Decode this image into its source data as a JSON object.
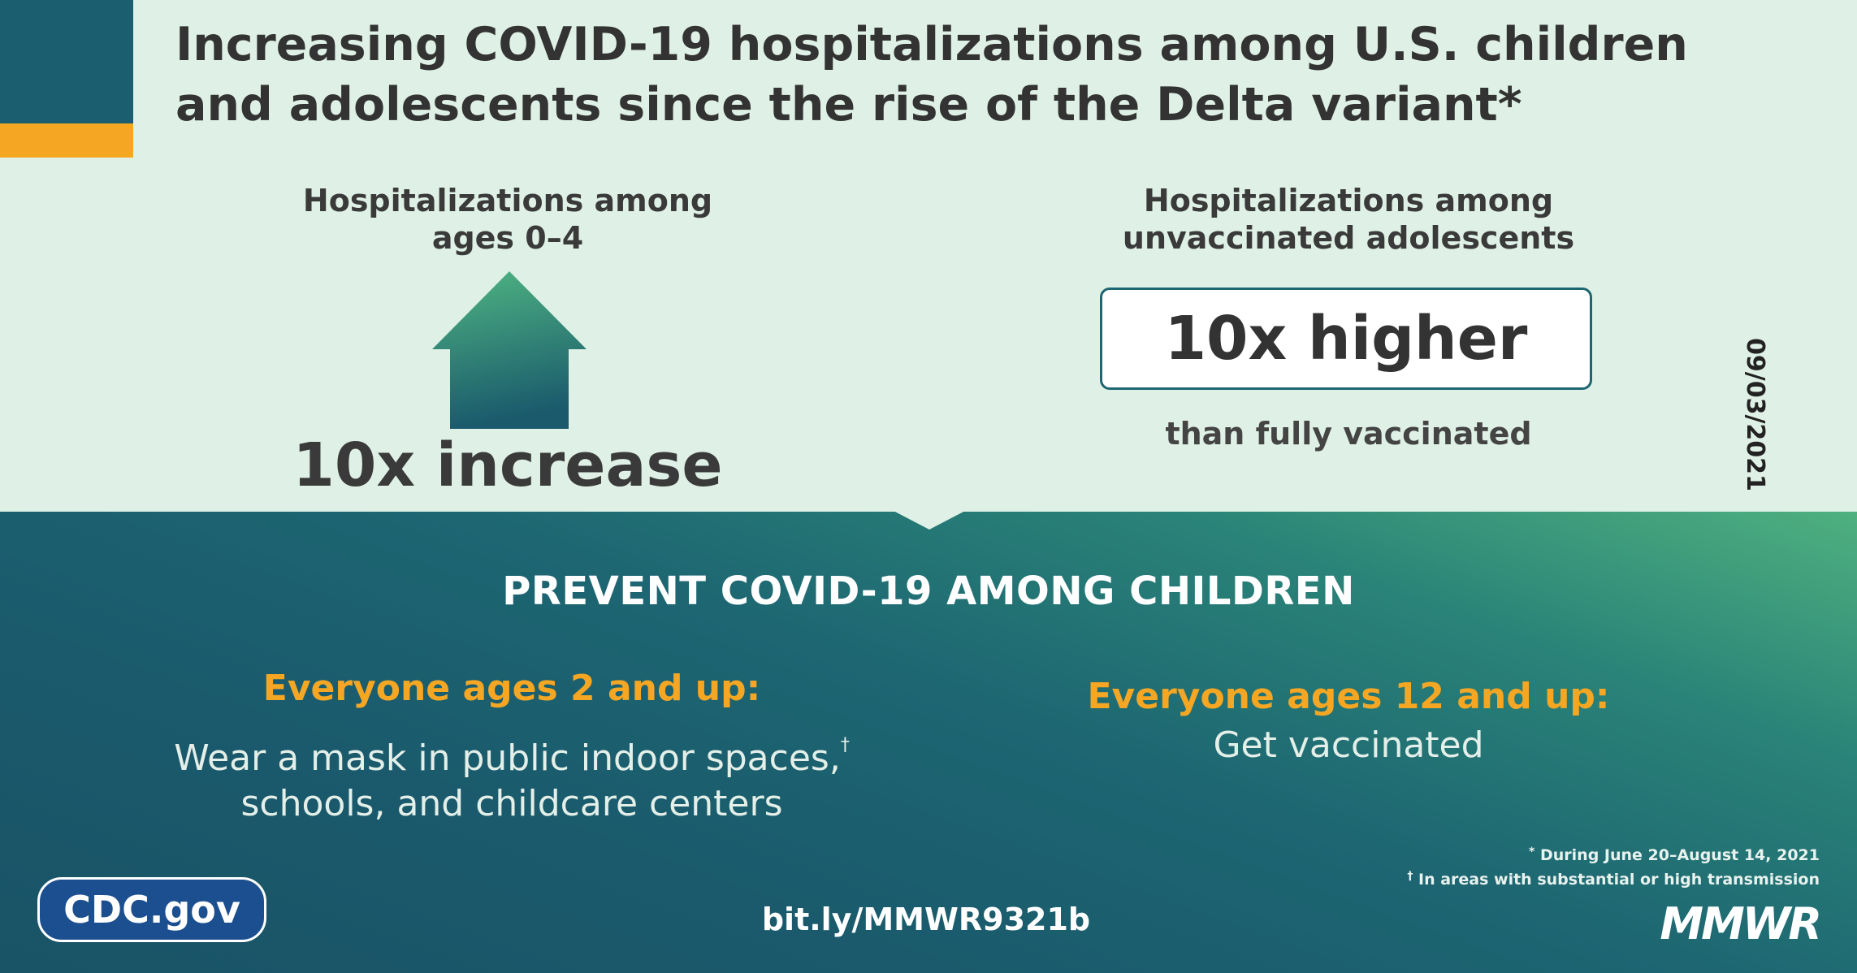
{
  "title": "Increasing COVID-19 hospitalizations among U.S. children and adolescents since the rise of the Delta variant*",
  "left_panel": {
    "heading_line1": "Hospitalizations among",
    "heading_line2": "ages 0–4",
    "stat": "10x increase",
    "arrow_icon": "up-arrow-icon"
  },
  "right_panel": {
    "heading_line1": "Hospitalizations among",
    "heading_line2": "unvaccinated adolescents",
    "stat": "10x higher",
    "subtext": "than fully vaccinated"
  },
  "date": "09/03/2021",
  "prevention": {
    "heading": "PREVENT COVID-19 AMONG CHILDREN",
    "left": {
      "heading": "Everyone ages 2 and up:",
      "line1": "Wear a mask in public indoor spaces,",
      "dagger": "†",
      "line2": "schools, and childcare centers"
    },
    "right": {
      "heading": "Everyone ages 12 and up:",
      "line1": "Get vaccinated"
    }
  },
  "footnotes": {
    "note1_mark": "*",
    "note1_text": "During June 20–August 14, 2021",
    "note2_mark": "†",
    "note2_text": "In areas with substantial or high transmission"
  },
  "footer": {
    "site": "CDC.gov",
    "link": "bit.ly/MMWR9321b",
    "brand": "MMWR"
  },
  "colors": {
    "top_background": "#dff1e6",
    "bottom_dark": "#195366",
    "bottom_light": "#4fb07f",
    "accent_orange": "#f5a623",
    "cdc_blue": "#1c4f8f"
  }
}
